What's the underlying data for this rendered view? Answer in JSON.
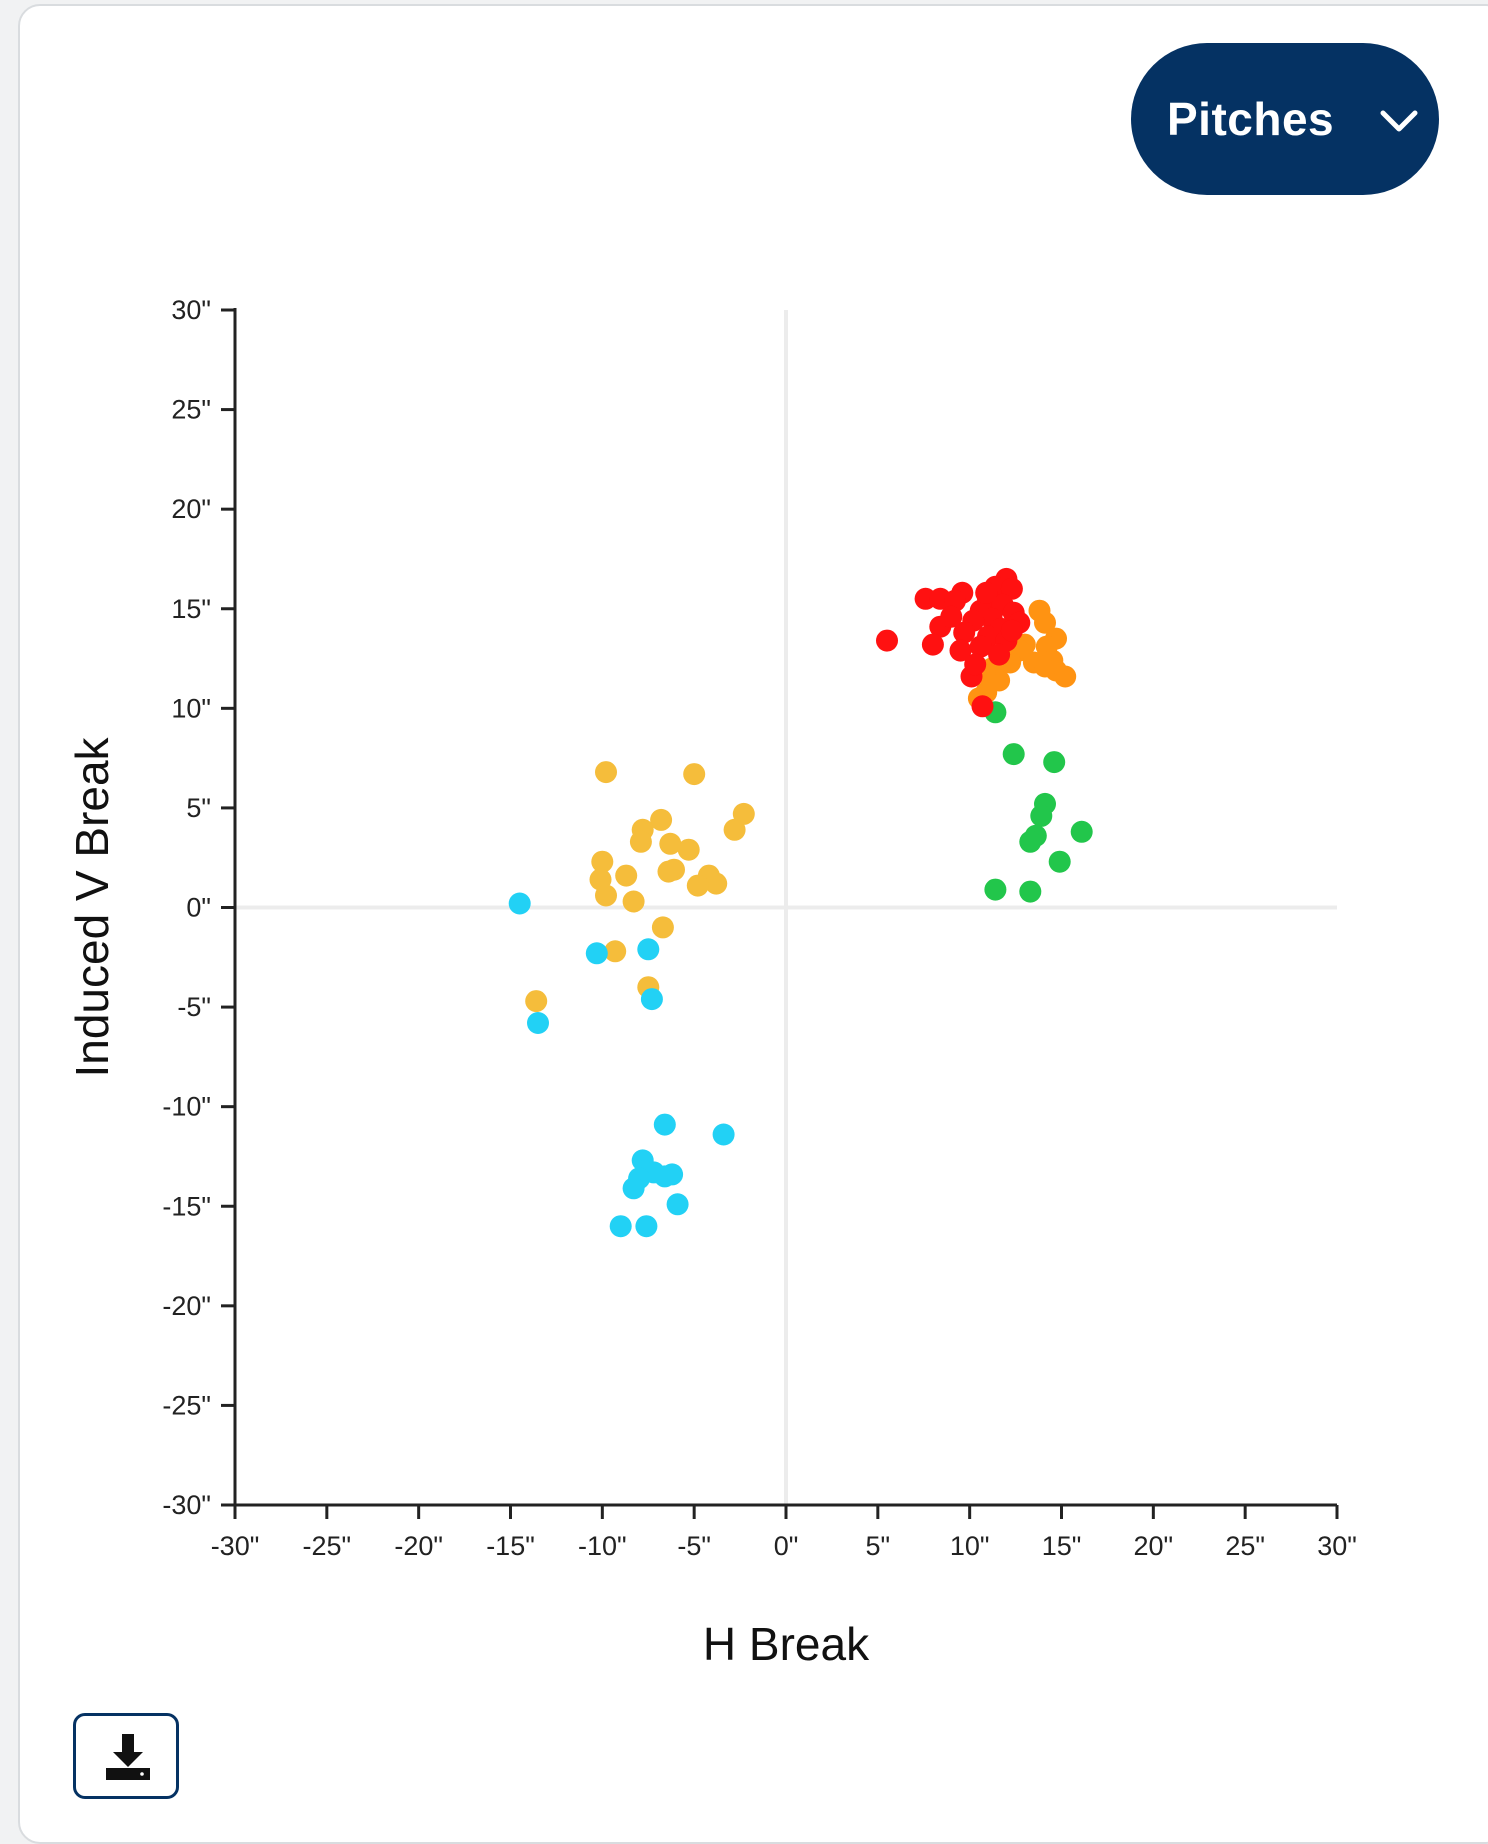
{
  "controls": {
    "dropdown_label": "Pitches",
    "dropdown_icon": "chevron-down-icon",
    "download_icon": "download-icon"
  },
  "colors": {
    "dropdown_bg": "#053263",
    "axis": "#222222",
    "zero_lines": "#ececec"
  },
  "chart_data": {
    "type": "scatter",
    "title": "",
    "xlabel": "H Break",
    "ylabel": "Induced V Break",
    "xlim": [
      -30,
      30
    ],
    "ylim": [
      -30,
      30
    ],
    "x_ticks": [
      "-30\"",
      "-25\"",
      "-20\"",
      "-15\"",
      "-10\"",
      "-5\"",
      "0\"",
      "5\"",
      "10\"",
      "15\"",
      "20\"",
      "25\"",
      "30\""
    ],
    "y_ticks": [
      "30\"",
      "25\"",
      "20\"",
      "15\"",
      "10\"",
      "5\"",
      "0\"",
      "-5\"",
      "-10\"",
      "-15\"",
      "-20\"",
      "-25\"",
      "-30\""
    ],
    "x_tick_values": [
      -30,
      -25,
      -20,
      -15,
      -10,
      -5,
      0,
      5,
      10,
      15,
      20,
      25,
      30
    ],
    "y_tick_values": [
      30,
      25,
      20,
      15,
      10,
      5,
      0,
      -5,
      -10,
      -15,
      -20,
      -25,
      -30
    ],
    "grid": false,
    "zero_lines": true,
    "legend": "none",
    "series": [
      {
        "color": "#f5bd3b",
        "points": [
          [
            -9.8,
            6.8
          ],
          [
            -5.0,
            6.7
          ],
          [
            -2.3,
            4.7
          ],
          [
            -6.8,
            4.4
          ],
          [
            -7.8,
            3.9
          ],
          [
            -2.8,
            3.9
          ],
          [
            -7.9,
            3.3
          ],
          [
            -6.3,
            3.2
          ],
          [
            -5.3,
            2.9
          ],
          [
            -10.0,
            2.3
          ],
          [
            -8.7,
            1.6
          ],
          [
            -10.1,
            1.4
          ],
          [
            -6.4,
            1.8
          ],
          [
            -6.1,
            1.9
          ],
          [
            -4.2,
            1.6
          ],
          [
            -3.8,
            1.2
          ],
          [
            -4.8,
            1.1
          ],
          [
            -9.8,
            0.6
          ],
          [
            -8.3,
            0.3
          ],
          [
            -6.7,
            -1.0
          ],
          [
            -9.3,
            -2.2
          ],
          [
            -7.5,
            -4.0
          ],
          [
            -13.6,
            -4.7
          ]
        ]
      },
      {
        "color": "#22d1f5",
        "points": [
          [
            -14.5,
            0.2
          ],
          [
            -10.3,
            -2.3
          ],
          [
            -7.5,
            -2.1
          ],
          [
            -7.3,
            -4.6
          ],
          [
            -13.5,
            -5.8
          ],
          [
            -6.6,
            -10.9
          ],
          [
            -3.4,
            -11.4
          ],
          [
            -7.8,
            -12.7
          ],
          [
            -7.6,
            -13.2
          ],
          [
            -7.2,
            -13.3
          ],
          [
            -6.6,
            -13.5
          ],
          [
            -8.0,
            -13.6
          ],
          [
            -6.2,
            -13.4
          ],
          [
            -8.3,
            -14.1
          ],
          [
            -5.9,
            -14.9
          ],
          [
            -9.0,
            -16.0
          ],
          [
            -7.6,
            -16.0
          ]
        ]
      },
      {
        "color": "#22c64b",
        "points": [
          [
            11.4,
            9.8
          ],
          [
            12.4,
            7.7
          ],
          [
            14.6,
            7.3
          ],
          [
            14.1,
            5.2
          ],
          [
            13.9,
            4.6
          ],
          [
            16.1,
            3.8
          ],
          [
            13.6,
            3.6
          ],
          [
            13.3,
            3.3
          ],
          [
            14.9,
            2.3
          ],
          [
            11.4,
            0.9
          ],
          [
            13.3,
            0.8
          ]
        ]
      },
      {
        "color": "#ff9312",
        "points": [
          [
            13.8,
            14.9
          ],
          [
            14.1,
            14.3
          ],
          [
            14.7,
            13.5
          ],
          [
            13.0,
            13.2
          ],
          [
            14.2,
            13.1
          ],
          [
            12.7,
            12.9
          ],
          [
            14.5,
            12.4
          ],
          [
            13.5,
            12.3
          ],
          [
            14.1,
            12.1
          ],
          [
            14.7,
            11.9
          ],
          [
            15.2,
            11.6
          ],
          [
            11.2,
            12.0
          ],
          [
            11.6,
            11.4
          ],
          [
            10.8,
            11.8
          ],
          [
            10.9,
            10.8
          ],
          [
            10.5,
            10.5
          ],
          [
            12.2,
            12.3
          ]
        ]
      },
      {
        "color": "#ff1111",
        "points": [
          [
            12.0,
            16.5
          ],
          [
            11.4,
            16.1
          ],
          [
            12.3,
            16.0
          ],
          [
            9.6,
            15.8
          ],
          [
            7.6,
            15.5
          ],
          [
            8.4,
            15.5
          ],
          [
            9.2,
            15.4
          ],
          [
            11.0,
            15.5
          ],
          [
            11.8,
            15.2
          ],
          [
            10.6,
            14.9
          ],
          [
            12.4,
            14.8
          ],
          [
            11.2,
            14.5
          ],
          [
            10.2,
            14.4
          ],
          [
            12.7,
            14.3
          ],
          [
            11.7,
            14.0
          ],
          [
            8.4,
            14.1
          ],
          [
            9.7,
            13.8
          ],
          [
            11.0,
            13.6
          ],
          [
            12.0,
            13.4
          ],
          [
            5.5,
            13.4
          ],
          [
            8.0,
            13.2
          ],
          [
            10.6,
            13.1
          ],
          [
            9.5,
            12.9
          ],
          [
            11.6,
            12.7
          ],
          [
            10.1,
            11.6
          ],
          [
            10.7,
            10.1
          ],
          [
            10.3,
            12.2
          ],
          [
            12.3,
            13.9
          ],
          [
            9.0,
            14.6
          ],
          [
            10.9,
            15.8
          ]
        ]
      }
    ]
  }
}
